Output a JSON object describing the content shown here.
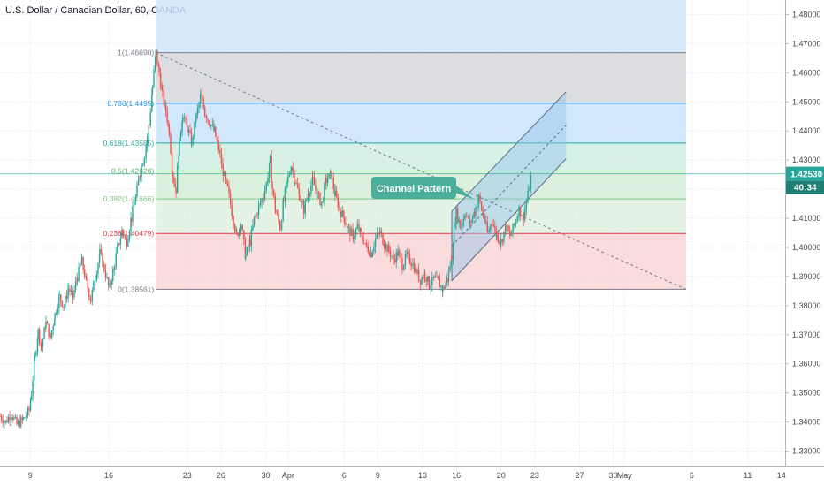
{
  "header": {
    "title": "U.S. Dollar / Canadian Dollar, 60, OANDA"
  },
  "chart_data": {
    "type": "candlestick",
    "symbol": "USDCAD",
    "ylim": [
      1.325,
      1.485
    ],
    "y_ticks": [
      "1.48000",
      "1.47000",
      "1.46000",
      "1.45000",
      "1.44000",
      "1.43000",
      "1.42000",
      "1.41000",
      "1.40000",
      "1.39000",
      "1.38000",
      "1.37000",
      "1.36000",
      "1.35000",
      "1.34000",
      "1.33000"
    ],
    "x_ticks": [
      {
        "label": "9",
        "day": 9
      },
      {
        "label": "16",
        "day": 16
      },
      {
        "label": "23",
        "day": 23
      },
      {
        "label": "26",
        "day": 26
      },
      {
        "label": "30",
        "day": 30
      },
      {
        "label": "Apr",
        "day": 32
      },
      {
        "label": "6",
        "day": 37
      },
      {
        "label": "9",
        "day": 40
      },
      {
        "label": "13",
        "day": 44
      },
      {
        "label": "16",
        "day": 47
      },
      {
        "label": "20",
        "day": 51
      },
      {
        "label": "23",
        "day": 54
      },
      {
        "label": "27",
        "day": 58
      },
      {
        "label": "30",
        "day": 61
      },
      {
        "label": "May",
        "day": 62
      },
      {
        "label": "6",
        "day": 68
      },
      {
        "label": "11",
        "day": 73
      },
      {
        "label": "14",
        "day": 76
      }
    ],
    "price_path": [
      [
        6.3,
        1.342
      ],
      [
        6.8,
        1.34
      ],
      [
        7.3,
        1.343
      ],
      [
        7.8,
        1.339
      ],
      [
        8.4,
        1.341
      ],
      [
        8.9,
        1.344
      ],
      [
        9.1,
        1.35
      ],
      [
        9.4,
        1.362
      ],
      [
        9.7,
        1.371
      ],
      [
        10.0,
        1.366
      ],
      [
        10.4,
        1.374
      ],
      [
        10.8,
        1.369
      ],
      [
        11.2,
        1.377
      ],
      [
        11.6,
        1.383
      ],
      [
        12.0,
        1.38
      ],
      [
        12.4,
        1.386
      ],
      [
        12.8,
        1.383
      ],
      [
        13.2,
        1.39
      ],
      [
        13.6,
        1.395
      ],
      [
        14.0,
        1.388
      ],
      [
        14.4,
        1.382
      ],
      [
        14.8,
        1.39
      ],
      [
        15.2,
        1.398
      ],
      [
        15.6,
        1.393
      ],
      [
        16.0,
        1.386
      ],
      [
        16.4,
        1.392
      ],
      [
        16.8,
        1.4
      ],
      [
        17.2,
        1.406
      ],
      [
        17.6,
        1.402
      ],
      [
        18.0,
        1.41
      ],
      [
        18.4,
        1.417
      ],
      [
        18.8,
        1.426
      ],
      [
        19.2,
        1.432
      ],
      [
        19.6,
        1.442
      ],
      [
        19.9,
        1.455
      ],
      [
        20.2,
        1.4669
      ],
      [
        20.5,
        1.46
      ],
      [
        20.8,
        1.452
      ],
      [
        21.1,
        1.447
      ],
      [
        21.4,
        1.44
      ],
      [
        21.7,
        1.425
      ],
      [
        22.0,
        1.42
      ],
      [
        22.3,
        1.436
      ],
      [
        22.6,
        1.446
      ],
      [
        23.0,
        1.441
      ],
      [
        23.4,
        1.436
      ],
      [
        23.8,
        1.445
      ],
      [
        24.2,
        1.452
      ],
      [
        24.6,
        1.446
      ],
      [
        25.0,
        1.443
      ],
      [
        25.4,
        1.44
      ],
      [
        25.8,
        1.434
      ],
      [
        26.2,
        1.426
      ],
      [
        26.6,
        1.42
      ],
      [
        27.0,
        1.412
      ],
      [
        27.4,
        1.404
      ],
      [
        27.8,
        1.408
      ],
      [
        28.2,
        1.397
      ],
      [
        28.6,
        1.402
      ],
      [
        29.0,
        1.41
      ],
      [
        29.4,
        1.414
      ],
      [
        29.8,
        1.418
      ],
      [
        30.2,
        1.424
      ],
      [
        30.4,
        1.43
      ],
      [
        30.6,
        1.42
      ],
      [
        30.9,
        1.412
      ],
      [
        31.3,
        1.407
      ],
      [
        31.6,
        1.416
      ],
      [
        32.0,
        1.424
      ],
      [
        32.3,
        1.428
      ],
      [
        32.6,
        1.423
      ],
      [
        33.0,
        1.418
      ],
      [
        33.4,
        1.413
      ],
      [
        33.8,
        1.419
      ],
      [
        34.2,
        1.423
      ],
      [
        34.6,
        1.418
      ],
      [
        35.0,
        1.415
      ],
      [
        35.4,
        1.423
      ],
      [
        35.8,
        1.425
      ],
      [
        36.2,
        1.418
      ],
      [
        36.6,
        1.413
      ],
      [
        37.0,
        1.41
      ],
      [
        37.4,
        1.406
      ],
      [
        37.8,
        1.404
      ],
      [
        38.2,
        1.407
      ],
      [
        38.6,
        1.404
      ],
      [
        39.0,
        1.4
      ],
      [
        39.4,
        1.398
      ],
      [
        39.8,
        1.403
      ],
      [
        40.2,
        1.405
      ],
      [
        40.6,
        1.401
      ],
      [
        41.0,
        1.399
      ],
      [
        41.4,
        1.396
      ],
      [
        41.8,
        1.398
      ],
      [
        42.2,
        1.394
      ],
      [
        42.6,
        1.397
      ],
      [
        43.0,
        1.395
      ],
      [
        43.4,
        1.392
      ],
      [
        43.8,
        1.389
      ],
      [
        44.2,
        1.391
      ],
      [
        44.6,
        1.387
      ],
      [
        45.0,
        1.389
      ],
      [
        45.4,
        1.388
      ],
      [
        45.8,
        1.3856
      ],
      [
        46.2,
        1.389
      ],
      [
        46.6,
        1.397
      ],
      [
        46.8,
        1.406
      ],
      [
        47.0,
        1.412
      ],
      [
        47.4,
        1.407
      ],
      [
        47.8,
        1.412
      ],
      [
        48.2,
        1.408
      ],
      [
        48.6,
        1.412
      ],
      [
        49.0,
        1.417
      ],
      [
        49.4,
        1.411
      ],
      [
        49.8,
        1.405
      ],
      [
        50.2,
        1.409
      ],
      [
        50.6,
        1.404
      ],
      [
        51.0,
        1.402
      ],
      [
        51.4,
        1.407
      ],
      [
        51.8,
        1.404
      ],
      [
        52.2,
        1.408
      ],
      [
        52.6,
        1.413
      ],
      [
        53.0,
        1.411
      ],
      [
        53.4,
        1.418
      ],
      [
        53.7,
        1.4253
      ]
    ],
    "fib_levels": [
      {
        "ratio": "1",
        "price": 1.4669,
        "label": "1(1.46690)",
        "color": "#787b86",
        "band": "#d6d7da"
      },
      {
        "ratio": "0.786",
        "price": 1.4495,
        "label": "0.786(1.4495)",
        "color": "#2196f3",
        "band": "#c9e3fa"
      },
      {
        "ratio": "0.618",
        "price": 1.43585,
        "label": "0.618(1.43585)",
        "color": "#26a69a",
        "band": "#cfeee0"
      },
      {
        "ratio": "0.5",
        "price": 1.42626,
        "label": "0.5(1.42626)",
        "color": "#4caf50",
        "band": "#d5efd7"
      },
      {
        "ratio": "0.382",
        "price": 1.41666,
        "label": "0.382(1.41666)",
        "color": "#81c784",
        "band": "#dff1df"
      },
      {
        "ratio": "0.236",
        "price": 1.40479,
        "label": "0.236(1.40479)",
        "color": "#f23645",
        "band": "#f9d6d6"
      },
      {
        "ratio": "0",
        "price": 1.38561,
        "label": "0(1.38561)",
        "color": "#787b86",
        "band": null
      }
    ],
    "fib_top_band": {
      "price_top": 1.485,
      "color": "#cfe6fb"
    },
    "fib_range": {
      "day_start": 20.2,
      "day_end": 67.5
    },
    "trend_line": {
      "from": [
        20.2,
        1.4669
      ],
      "to": [
        67.5,
        1.3856
      ]
    },
    "channel": {
      "upper": {
        "from": [
          46.6,
          1.4125
        ],
        "to": [
          56.8,
          1.4535
        ]
      },
      "lower": {
        "from": [
          46.6,
          1.3885
        ],
        "to": [
          56.8,
          1.4305
        ]
      },
      "mid": {
        "from": [
          46.6,
          1.4005
        ],
        "to": [
          56.8,
          1.442
        ]
      }
    },
    "callout": {
      "text": "Channel Pattern",
      "point": [
        48.6,
        1.4165
      ]
    },
    "last_price": {
      "label": "1.42530",
      "price": 1.4253,
      "countdown": "40:34",
      "color": "#26a69a"
    }
  }
}
